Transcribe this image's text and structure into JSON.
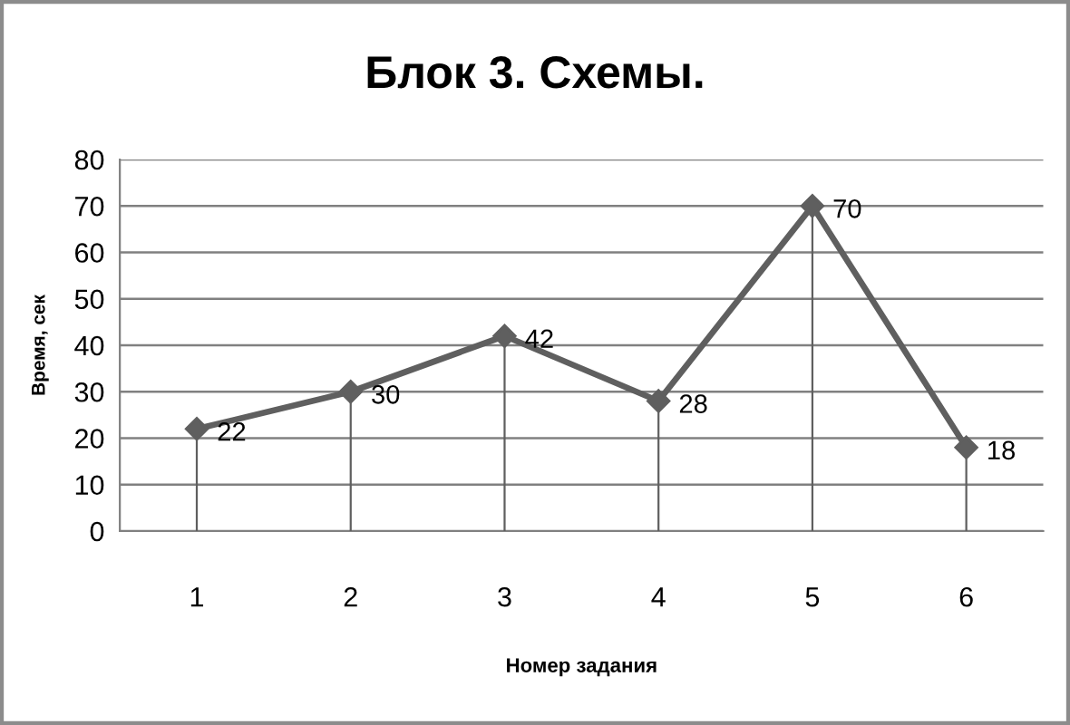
{
  "chart_data": {
    "type": "line",
    "title": "Блок 3. Схемы.",
    "xlabel": "Номер задания",
    "ylabel": "Время, сек",
    "categories": [
      "1",
      "2",
      "3",
      "4",
      "5",
      "6"
    ],
    "series": [
      {
        "color": "#5f5f5f",
        "line_style": "solid",
        "values": [
          22,
          30,
          42,
          28,
          70,
          18
        ]
      },
      {
        "type": "lollipop",
        "color": "#5f5f5f",
        "marker": "diamond",
        "data_labels": true,
        "values": [
          22,
          30,
          42,
          28,
          70,
          18
        ]
      }
    ],
    "ylim": [
      0,
      80
    ],
    "yticks": [
      0,
      10,
      20,
      30,
      40,
      50,
      60,
      70,
      80
    ],
    "grid": "y"
  }
}
